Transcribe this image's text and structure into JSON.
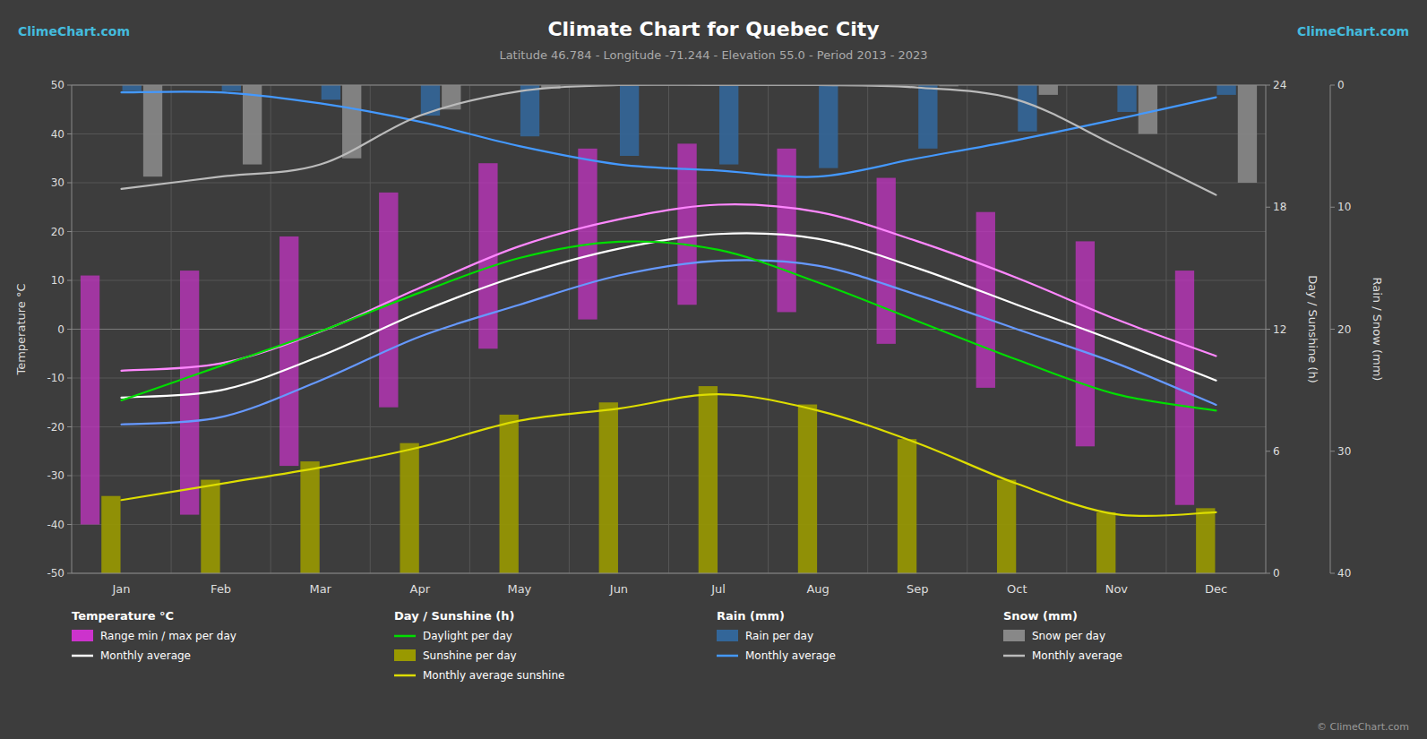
{
  "chart_data": {
    "type": "bar",
    "title": "Climate Chart for Quebec City",
    "subtitle": "Latitude 46.784 - Longitude -71.244 - Elevation 55.0 - Period 2013 - 2023",
    "categories": [
      "Jan",
      "Feb",
      "Mar",
      "Apr",
      "May",
      "Jun",
      "Jul",
      "Aug",
      "Sep",
      "Oct",
      "Nov",
      "Dec"
    ],
    "ylabel": "Temperature °C",
    "ylim": [
      -50,
      50
    ],
    "yticks": [
      -50,
      -40,
      -30,
      -20,
      -10,
      0,
      10,
      20,
      30,
      40,
      50
    ],
    "y2label": "Day / Sunshine (h)",
    "y2lim": [
      0,
      24
    ],
    "y2ticks": [
      0,
      6,
      12,
      18,
      24
    ],
    "y3label": "Rain / Snow (mm)",
    "y3lim": [
      40,
      0
    ],
    "y3ticks": [
      0,
      10,
      20,
      30,
      40
    ],
    "grid": true,
    "annotations": [
      "ClimeChart.com",
      "ClimeChart.com",
      "© ClimeChart.com"
    ],
    "series": [
      {
        "name": "Range min / max per day",
        "group": "Temperature °C",
        "type": "range",
        "color": "#cc33cc",
        "low": [
          -40.0,
          -38.0,
          -28.0,
          -16.0,
          -4.0,
          2.0,
          5.0,
          3.5,
          -3.0,
          -12.0,
          -24.0,
          -36.0
        ],
        "high": [
          11.0,
          12.0,
          19.0,
          28.0,
          34.0,
          37.0,
          38.0,
          37.0,
          31.0,
          24.0,
          18.0,
          12.0
        ]
      },
      {
        "type": "line",
        "color": "#ff88ff",
        "values": [
          -8.5,
          -7.0,
          -0.5,
          8.5,
          17.0,
          22.5,
          25.5,
          24.0,
          18.0,
          10.5,
          2.0,
          -5.5
        ]
      },
      {
        "name": "Monthly average",
        "group": "Temperature °C",
        "type": "line",
        "color": "#ffffff",
        "values": [
          -14.0,
          -12.5,
          -5.5,
          3.5,
          11.0,
          16.5,
          19.5,
          18.5,
          12.5,
          5.0,
          -2.5,
          -10.5
        ]
      },
      {
        "type": "line",
        "color": "#6699ff",
        "values": [
          -19.5,
          -18.0,
          -10.5,
          -1.5,
          5.0,
          11.0,
          14.0,
          13.0,
          7.0,
          0.0,
          -7.0,
          -15.5
        ]
      },
      {
        "name": "Daylight per day",
        "group": "Day / Sunshine (h)",
        "type": "line",
        "axis": "y2",
        "color": "#00dd00",
        "values": [
          8.5,
          10.2,
          11.9,
          13.8,
          15.5,
          16.3,
          15.9,
          14.3,
          12.4,
          10.5,
          8.8,
          8.0
        ]
      },
      {
        "name": "Sunshine per day",
        "group": "Day / Sunshine (h)",
        "type": "bar",
        "axis": "y2",
        "color": "#999900",
        "values": [
          3.8,
          4.6,
          5.5,
          6.4,
          7.8,
          8.4,
          9.2,
          8.3,
          6.6,
          4.6,
          3.0,
          3.2
        ]
      },
      {
        "name": "Monthly average sunshine",
        "group": "Day / Sunshine (h)",
        "type": "line",
        "axis": "y2",
        "color": "#dddd00",
        "values": [
          3.6,
          4.4,
          5.2,
          6.2,
          7.5,
          8.1,
          8.8,
          8.0,
          6.4,
          4.4,
          2.9,
          3.0
        ]
      },
      {
        "name": "Rain per day",
        "group": "Rain (mm)",
        "type": "bar",
        "axis": "y3",
        "color": "#336699",
        "values": [
          0.5,
          0.5,
          1.2,
          2.5,
          4.2,
          5.8,
          6.5,
          6.8,
          5.2,
          3.8,
          2.2,
          0.8
        ]
      },
      {
        "name": "Monthly average",
        "group": "Rain (mm)",
        "type": "line",
        "axis": "y3",
        "color": "#4499ff",
        "values": [
          0.6,
          0.6,
          1.5,
          3.0,
          5.0,
          6.5,
          7.0,
          7.5,
          6.0,
          4.5,
          2.8,
          1.0
        ]
      },
      {
        "name": "Snow per day",
        "group": "Snow (mm)",
        "type": "bar",
        "axis": "y3",
        "color": "#888888",
        "values": [
          7.5,
          6.5,
          6.0,
          2.0,
          0.3,
          0.0,
          0.0,
          0.0,
          0.1,
          0.8,
          4.0,
          8.0
        ]
      },
      {
        "name": "Monthly average",
        "group": "Snow (mm)",
        "type": "line",
        "axis": "y3",
        "color": "#bbbbbb",
        "values": [
          8.5,
          7.5,
          6.5,
          2.5,
          0.5,
          0.0,
          0.0,
          0.0,
          0.2,
          1.2,
          5.0,
          9.0
        ]
      }
    ]
  }
}
